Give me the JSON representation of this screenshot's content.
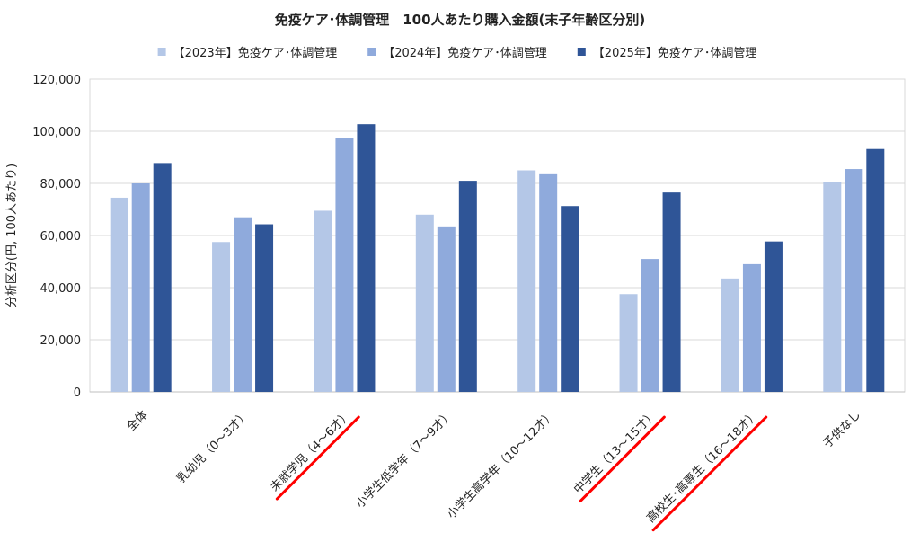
{
  "chart_data": {
    "type": "bar",
    "title": "免疫ケア･体調管理　100人あたり購入金額(末子年齢区分別)",
    "ylabel": "分析区分(円, 100人あたり)",
    "xlabel": "",
    "ylim": [
      0,
      120000
    ],
    "yticks": [
      0,
      20000,
      40000,
      60000,
      80000,
      100000,
      120000
    ],
    "ytick_labels": [
      "0",
      "20,000",
      "40,000",
      "60,000",
      "80,000",
      "100,000",
      "120,000"
    ],
    "grid": true,
    "legend_position": "top",
    "categories": [
      "全体",
      "乳幼児（0～3才）",
      "未就学児（4～6才）",
      "小学生低学年（7～9才）",
      "小学生高学年（10～12才）",
      "中学生（13～15才）",
      "高校生･高専生（16～18才）",
      "子供なし"
    ],
    "underlined_categories": [
      2,
      5,
      6
    ],
    "underline_color": "#ff0000",
    "series": [
      {
        "name": "【2023年】免疫ケア･体調管理",
        "color": "#b4c7e7",
        "values": [
          74500,
          57500,
          69500,
          68000,
          85000,
          37500,
          43500,
          80500
        ]
      },
      {
        "name": "【2024年】免疫ケア･体調管理",
        "color": "#8faadc",
        "values": [
          80000,
          67000,
          97500,
          63500,
          83500,
          51000,
          49000,
          85500
        ]
      },
      {
        "name": "【2025年】免疫ケア･体調管理",
        "color": "#2f5597",
        "values": [
          87800,
          64300,
          102700,
          81000,
          71300,
          76500,
          57700,
          93200
        ]
      }
    ]
  }
}
